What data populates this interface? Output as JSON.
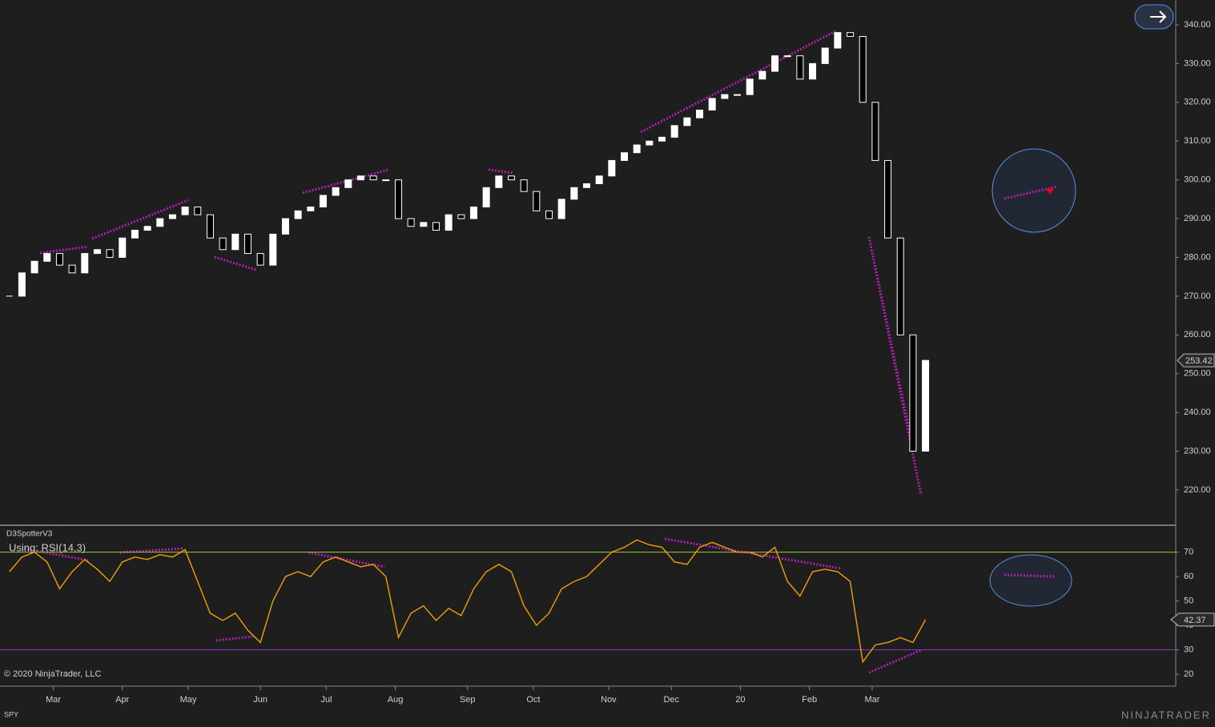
{
  "chart_data": [
    {
      "type": "candlestick",
      "symbol": "SPY",
      "color_up": "#ffffff",
      "color_down": "#000000",
      "x": [
        0,
        4,
        8,
        12,
        16,
        20,
        24,
        28,
        32,
        36,
        40,
        44,
        48,
        52,
        56,
        60,
        64,
        68,
        72,
        76,
        80,
        84,
        88,
        92,
        96,
        100,
        104,
        108,
        112,
        116,
        120,
        124,
        128,
        132,
        136,
        140,
        144,
        148,
        152,
        156,
        160,
        164,
        168,
        172,
        176,
        180,
        184,
        188,
        192,
        196,
        200,
        204,
        208,
        212,
        216,
        220,
        224,
        228,
        232,
        236,
        240,
        244,
        248,
        252,
        256,
        260,
        264,
        268,
        272,
        276,
        280,
        284,
        288,
        292
      ],
      "series": [
        {
          "values": [
            270,
            276,
            279,
            281,
            278,
            276,
            281,
            282,
            280,
            285,
            287,
            288,
            290,
            291,
            293,
            291,
            285,
            282,
            286,
            281,
            278,
            286,
            290,
            292,
            293,
            296,
            298,
            300,
            301,
            300,
            300,
            290,
            288,
            289,
            287,
            291,
            290,
            293,
            298,
            301,
            300,
            297,
            292,
            290,
            295,
            298,
            299,
            301,
            305,
            307,
            309,
            310,
            311,
            314,
            316,
            318,
            321,
            322,
            322,
            326,
            328,
            332,
            332,
            326,
            330,
            334,
            338,
            337,
            320,
            305,
            285,
            260,
            230,
            253.42
          ]
        }
      ],
      "xlim": [
        -3,
        371
      ],
      "ylim": [
        211.1,
        346.4
      ],
      "yticks": [
        {
          "value": 220,
          "label": "220.00"
        },
        {
          "value": 230,
          "label": "230.00"
        },
        {
          "value": 240,
          "label": "240.00"
        },
        {
          "value": 250,
          "label": "250.00"
        },
        {
          "value": 260,
          "label": "260.00"
        },
        {
          "value": 270,
          "label": "270.00"
        },
        {
          "value": 280,
          "label": "280.00"
        },
        {
          "value": 290,
          "label": "290.00"
        },
        {
          "value": 300,
          "label": "300.00"
        },
        {
          "value": 310,
          "label": "310.00"
        },
        {
          "value": 320,
          "label": "320.00"
        },
        {
          "value": 330,
          "label": "330.00"
        },
        {
          "value": 340,
          "label": "340.00"
        }
      ]
    },
    {
      "type": "line",
      "title": "D3SpotterV3",
      "subtitle": "Using: RSI(14,3)",
      "copyright": "© 2020 NinjaTrader, LLC",
      "x": [
        0,
        4,
        8,
        12,
        16,
        20,
        24,
        28,
        32,
        36,
        40,
        44,
        48,
        52,
        56,
        60,
        64,
        68,
        72,
        76,
        80,
        84,
        88,
        92,
        96,
        100,
        104,
        108,
        112,
        116,
        120,
        124,
        128,
        132,
        136,
        140,
        144,
        148,
        152,
        156,
        160,
        164,
        168,
        172,
        176,
        180,
        184,
        188,
        192,
        196,
        200,
        204,
        208,
        212,
        216,
        220,
        224,
        228,
        232,
        236,
        240,
        244,
        248,
        252,
        256,
        260,
        264,
        268,
        272,
        276,
        280,
        284,
        288,
        292
      ],
      "series": [
        {
          "color": "#f0a000",
          "values": [
            62,
            68,
            70,
            66,
            55,
            62,
            67,
            63,
            58,
            66,
            68,
            67,
            69,
            68,
            71,
            58,
            45,
            42,
            45,
            38,
            33,
            50,
            60,
            62,
            60,
            66,
            68,
            66,
            64,
            65,
            60,
            35,
            45,
            48,
            42,
            47,
            44,
            55,
            62,
            65,
            62,
            48,
            40,
            45,
            55,
            58,
            60,
            65,
            70,
            72,
            75,
            73,
            72,
            66,
            65,
            72,
            74,
            72,
            70,
            70,
            68,
            72,
            58,
            52,
            62,
            63,
            62,
            58,
            25,
            32,
            33,
            35,
            33,
            42.37
          ]
        }
      ],
      "levels": [
        {
          "value": 70,
          "color": "#9acd32"
        },
        {
          "value": 30,
          "color": "#9932cc"
        }
      ],
      "xlim": [
        -3,
        371
      ],
      "ylim": [
        15.1,
        80.7
      ],
      "yticks": [
        20,
        30,
        40,
        50,
        60,
        70
      ],
      "xticks": [
        {
          "value": 14,
          "label": "Mar"
        },
        {
          "value": 36,
          "label": "Apr"
        },
        {
          "value": 57,
          "label": "May"
        },
        {
          "value": 80,
          "label": "Jun"
        },
        {
          "value": 101,
          "label": "Jul"
        },
        {
          "value": 123,
          "label": "Aug"
        },
        {
          "value": 146,
          "label": "Sep"
        },
        {
          "value": 167,
          "label": "Oct"
        },
        {
          "value": 191,
          "label": "Nov"
        },
        {
          "value": 211,
          "label": "Dec"
        },
        {
          "value": 233,
          "label": "20"
        },
        {
          "value": 255,
          "label": "Feb"
        },
        {
          "value": 275,
          "label": "Mar"
        }
      ]
    }
  ],
  "brand": "NINJATRADER"
}
